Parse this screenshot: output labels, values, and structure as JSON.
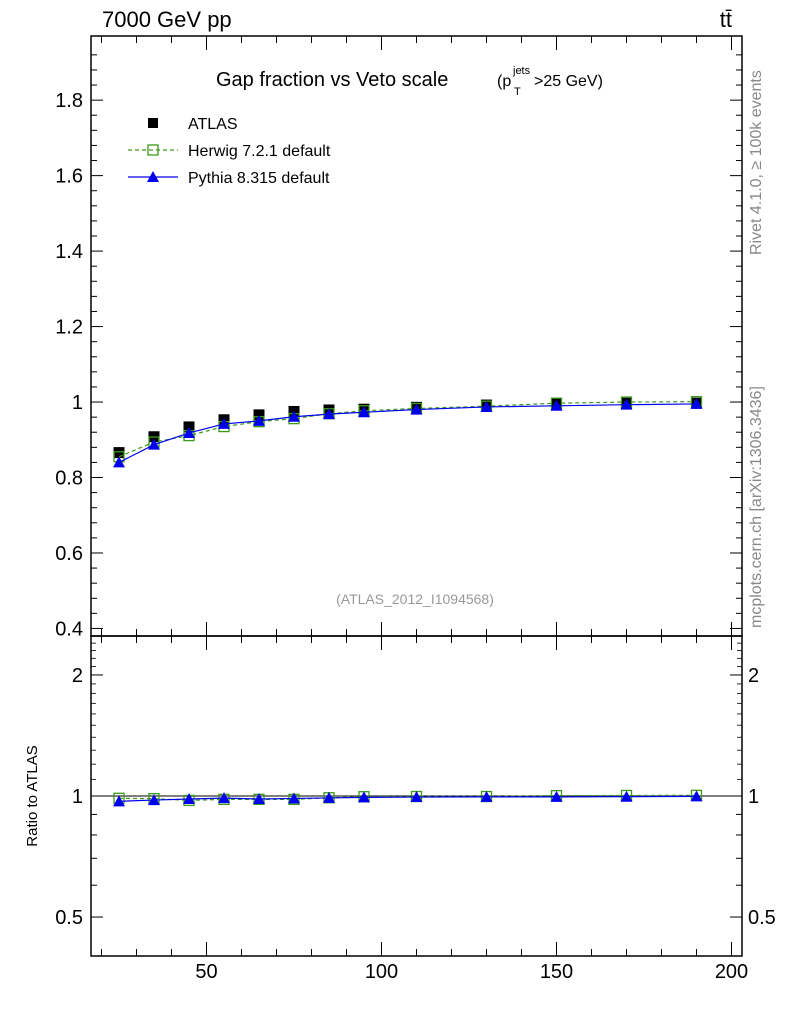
{
  "header": {
    "left": "7000 GeV pp",
    "right": "tt̄"
  },
  "side_labels": {
    "rivet": "Rivet 4.1.0, ≥ 100k events",
    "mcplots": "mcplots.cern.ch [arXiv:1306.3436]"
  },
  "chart_data": {
    "type": "line",
    "title_main": "Gap fraction vs Veto scale",
    "title_sub": {
      "open": "(p",
      "sup": "jets",
      "sub": "T",
      "close": ">25 GeV)"
    },
    "watermark": "(ATLAS_2012_I1094568)",
    "x": [
      25,
      35,
      45,
      55,
      65,
      75,
      85,
      95,
      110,
      130,
      150,
      170,
      190
    ],
    "xlim": [
      17,
      203
    ],
    "xticks": [
      "50",
      "100",
      "150",
      "200"
    ],
    "xtick_values": [
      50,
      100,
      150,
      200
    ],
    "main_panel": {
      "ylim": [
        0.38,
        1.97
      ],
      "yticks": [
        "0.4",
        "0.6",
        "0.8",
        "1",
        "1.2",
        "1.4",
        "1.6",
        "1.8"
      ],
      "ytick_values": [
        0.4,
        0.6,
        0.8,
        1.0,
        1.2,
        1.4,
        1.6,
        1.8
      ],
      "series": [
        {
          "name": "ATLAS",
          "style": "data",
          "color": "#000000",
          "values": [
            0.866,
            0.908,
            0.934,
            0.953,
            0.966,
            0.975,
            0.979,
            0.981,
            0.986,
            0.992,
            0.995,
            0.997,
            0.997
          ]
        },
        {
          "name": "Herwig 7.2.1 default",
          "style": "dashed-open-square",
          "color": "#3a9a1a",
          "values": [
            0.855,
            0.894,
            0.911,
            0.935,
            0.948,
            0.956,
            0.969,
            0.977,
            0.983,
            0.989,
            0.997,
            1.0,
            1.001
          ]
        },
        {
          "name": "Pythia 8.315 default",
          "style": "solid-triangle",
          "color": "#0000ee",
          "values": [
            0.84,
            0.887,
            0.918,
            0.942,
            0.95,
            0.961,
            0.968,
            0.973,
            0.98,
            0.987,
            0.99,
            0.993,
            0.995
          ]
        }
      ]
    },
    "ratio_panel": {
      "ylabel": "Ratio to ATLAS",
      "ylim": [
        0.4,
        2.5
      ],
      "scale": "log",
      "yticks": [
        "0.5",
        "1",
        "2"
      ],
      "ytick_values": [
        0.5,
        1,
        2
      ],
      "series": [
        {
          "name": "Herwig 7.2.1 default",
          "color": "#3a9a1a",
          "values": [
            0.987,
            0.985,
            0.975,
            0.981,
            0.981,
            0.981,
            0.99,
            0.996,
            0.997,
            0.997,
            1.002,
            1.003,
            1.004
          ]
        },
        {
          "name": "Pythia 8.315 default",
          "color": "#0000ee",
          "values": [
            0.97,
            0.977,
            0.983,
            0.988,
            0.983,
            0.986,
            0.989,
            0.992,
            0.994,
            0.995,
            0.995,
            0.996,
            0.998
          ]
        }
      ]
    }
  }
}
